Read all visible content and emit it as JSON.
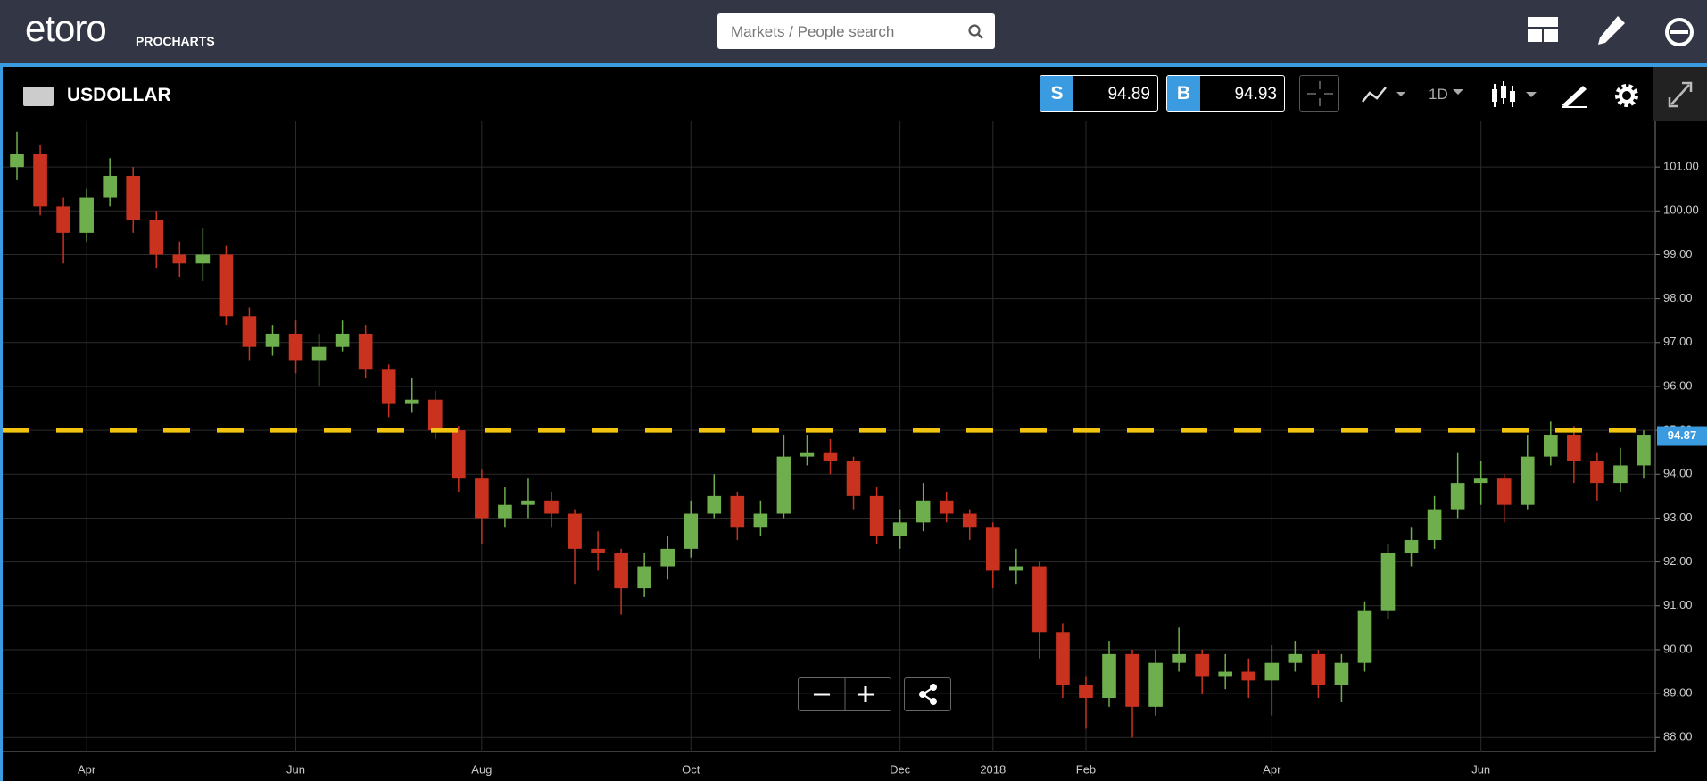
{
  "header": {
    "logo": "etoro",
    "product": "PROCHARTS",
    "search_placeholder": "Markets / People search"
  },
  "toolbar": {
    "instrument": "USDOLLAR",
    "sell_label": "S",
    "sell_price": 94.89,
    "buy_label": "B",
    "buy_price": 94.93,
    "timeframe": "1D"
  },
  "chart_data": {
    "type": "candlestick",
    "categories": [
      null,
      null,
      null,
      "Apr",
      null,
      null,
      null,
      null,
      null,
      null,
      null,
      null,
      "Jun",
      null,
      null,
      null,
      null,
      null,
      null,
      null,
      "Aug",
      null,
      null,
      null,
      null,
      null,
      null,
      null,
      null,
      "Oct",
      null,
      null,
      null,
      null,
      null,
      null,
      null,
      null,
      "Dec",
      null,
      null,
      null,
      "2018",
      null,
      null,
      null,
      "Feb",
      null,
      null,
      null,
      null,
      null,
      null,
      null,
      "Apr",
      null,
      null,
      null,
      null,
      null,
      null,
      null,
      null,
      "Jun",
      null,
      null,
      null,
      null,
      null,
      null,
      null
    ],
    "open": [
      101.0,
      101.3,
      100.1,
      99.5,
      100.3,
      100.8,
      99.8,
      99.0,
      98.8,
      99.0,
      97.6,
      96.9,
      97.2,
      96.6,
      96.9,
      97.2,
      96.4,
      95.6,
      95.7,
      95.0,
      93.9,
      93.0,
      93.3,
      93.4,
      93.1,
      92.3,
      92.2,
      91.4,
      91.9,
      92.3,
      93.1,
      93.5,
      92.8,
      93.1,
      94.4,
      94.5,
      94.3,
      93.5,
      92.6,
      92.9,
      93.4,
      93.1,
      92.8,
      91.8,
      91.9,
      90.4,
      89.2,
      88.9,
      89.9,
      88.7,
      89.7,
      89.9,
      89.4,
      89.5,
      89.3,
      89.7,
      89.9,
      89.2,
      89.7,
      90.9,
      92.2,
      92.5,
      93.2,
      93.8,
      93.9,
      93.3,
      94.4,
      94.9,
      94.3,
      93.8,
      94.2
    ],
    "high": [
      101.8,
      101.5,
      100.3,
      100.5,
      101.2,
      101.0,
      100.0,
      99.3,
      99.6,
      99.2,
      97.8,
      97.4,
      97.5,
      97.2,
      97.5,
      97.4,
      96.5,
      96.2,
      95.9,
      95.1,
      94.1,
      93.7,
      93.9,
      93.6,
      93.2,
      92.7,
      92.3,
      92.2,
      92.6,
      93.4,
      94.0,
      93.6,
      93.4,
      94.9,
      94.9,
      94.8,
      94.4,
      93.7,
      93.2,
      93.8,
      93.6,
      93.2,
      92.9,
      92.3,
      92.0,
      90.6,
      89.4,
      90.2,
      90.0,
      90.0,
      90.5,
      90.0,
      89.9,
      89.8,
      90.1,
      90.2,
      90.0,
      89.9,
      91.1,
      92.4,
      92.8,
      93.5,
      94.5,
      94.3,
      94.0,
      94.9,
      95.2,
      95.1,
      94.5,
      94.6,
      95.0
    ],
    "low": [
      100.7,
      99.9,
      98.8,
      99.3,
      100.1,
      99.5,
      98.7,
      98.5,
      98.4,
      97.4,
      96.6,
      96.7,
      96.3,
      96.0,
      96.8,
      96.2,
      95.3,
      95.4,
      94.8,
      93.6,
      92.4,
      92.8,
      93.0,
      92.8,
      91.5,
      91.8,
      90.8,
      91.2,
      91.6,
      92.1,
      93.0,
      92.5,
      92.6,
      93.0,
      94.2,
      94.0,
      93.2,
      92.4,
      92.3,
      92.7,
      92.9,
      92.5,
      91.4,
      91.5,
      89.8,
      88.9,
      88.2,
      88.7,
      88.0,
      88.5,
      89.5,
      89.0,
      89.1,
      88.9,
      88.5,
      89.5,
      88.9,
      88.8,
      89.5,
      90.7,
      91.9,
      92.3,
      93.0,
      93.3,
      92.9,
      93.2,
      94.2,
      93.8,
      93.4,
      93.6,
      93.9
    ],
    "close": [
      101.3,
      100.1,
      99.5,
      100.3,
      100.8,
      99.8,
      99.0,
      98.8,
      99.0,
      97.6,
      96.9,
      97.2,
      96.6,
      96.9,
      97.2,
      96.4,
      95.6,
      95.7,
      95.0,
      93.9,
      93.0,
      93.3,
      93.4,
      93.1,
      92.3,
      92.2,
      91.4,
      91.9,
      92.3,
      93.1,
      93.5,
      92.8,
      93.1,
      94.4,
      94.5,
      94.3,
      93.5,
      92.6,
      92.9,
      93.4,
      93.1,
      92.8,
      91.8,
      91.9,
      90.4,
      89.2,
      88.9,
      89.9,
      88.7,
      89.7,
      89.9,
      89.4,
      89.5,
      89.3,
      89.7,
      89.9,
      89.2,
      89.7,
      90.9,
      92.2,
      92.5,
      93.2,
      93.8,
      93.9,
      93.3,
      94.4,
      94.9,
      94.3,
      93.8,
      94.2,
      94.9
    ],
    "up_color": "#6fae4c",
    "down_color": "#c8321f",
    "ylim": [
      87.68,
      102.04
    ],
    "yticks": [
      {
        "value": 88,
        "label": "88.00"
      },
      {
        "value": 89,
        "label": "89.00"
      },
      {
        "value": 90,
        "label": "90.00"
      },
      {
        "value": 91,
        "label": "91.00"
      },
      {
        "value": 92,
        "label": "92.00"
      },
      {
        "value": 93,
        "label": "93.00"
      },
      {
        "value": 94,
        "label": "94.00"
      },
      {
        "value": 95,
        "label": "95.00"
      },
      {
        "value": 96,
        "label": "96.00"
      },
      {
        "value": 97,
        "label": "97.00"
      },
      {
        "value": 98,
        "label": "98.00"
      },
      {
        "value": 99,
        "label": "99.00"
      },
      {
        "value": 100,
        "label": "100.00"
      },
      {
        "value": 101,
        "label": "101.00"
      }
    ],
    "grid": true,
    "alert_line": 95.0,
    "alert_color": "#f2c40f",
    "last_price": 94.87,
    "last_price_color": "#3a9be0"
  }
}
